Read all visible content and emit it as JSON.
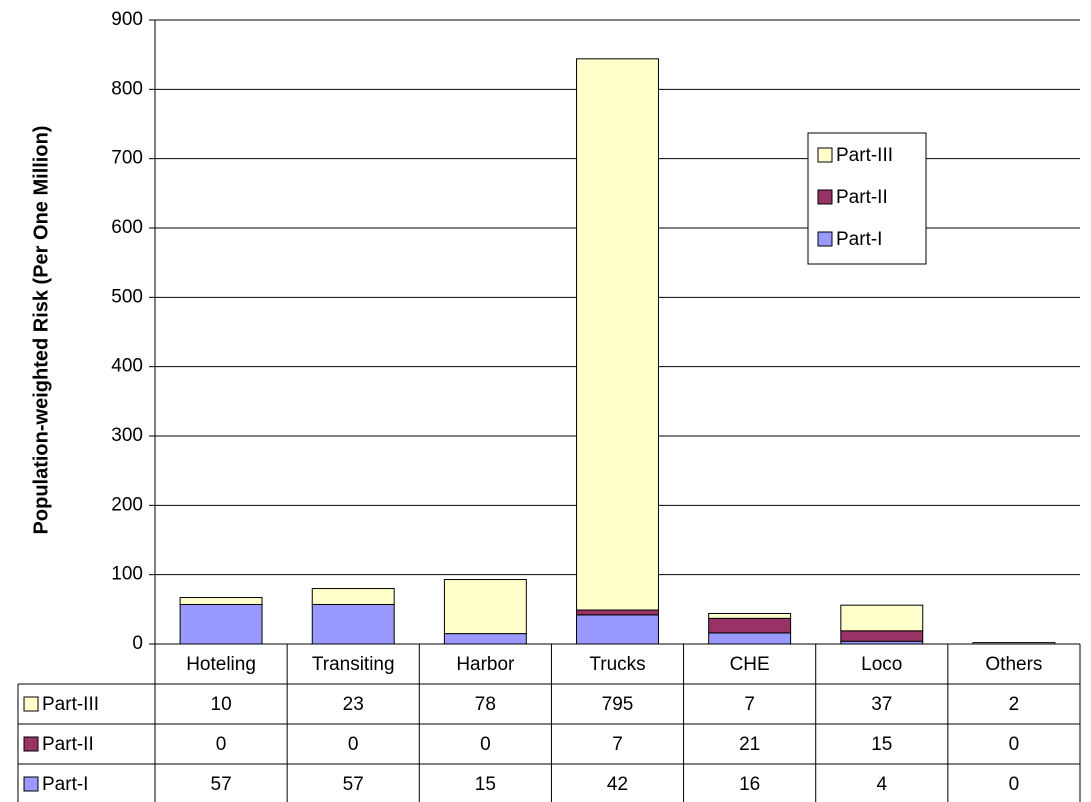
{
  "chart_data": {
    "type": "stacked_bar",
    "y_label": "Population-weighted Risk (Per One Million)",
    "categories": [
      "Hoteling",
      "Transiting",
      "Harbor",
      "Trucks",
      "CHE",
      "Loco",
      "Others"
    ],
    "series": [
      {
        "name": "Part-I",
        "color": "#9999ff",
        "values": [
          57,
          57,
          15,
          42,
          16,
          4,
          0
        ]
      },
      {
        "name": "Part-II",
        "color": "#993366",
        "values": [
          0,
          0,
          0,
          7,
          21,
          15,
          0
        ]
      },
      {
        "name": "Part-III",
        "color": "#ffffcc",
        "values": [
          10,
          23,
          78,
          795,
          7,
          37,
          2
        ]
      }
    ],
    "ylim": [
      0,
      900
    ],
    "yticks": [
      0,
      100,
      200,
      300,
      400,
      500,
      600,
      700,
      800,
      900
    ],
    "grid": true,
    "legend": "upper right",
    "data_table": true
  }
}
